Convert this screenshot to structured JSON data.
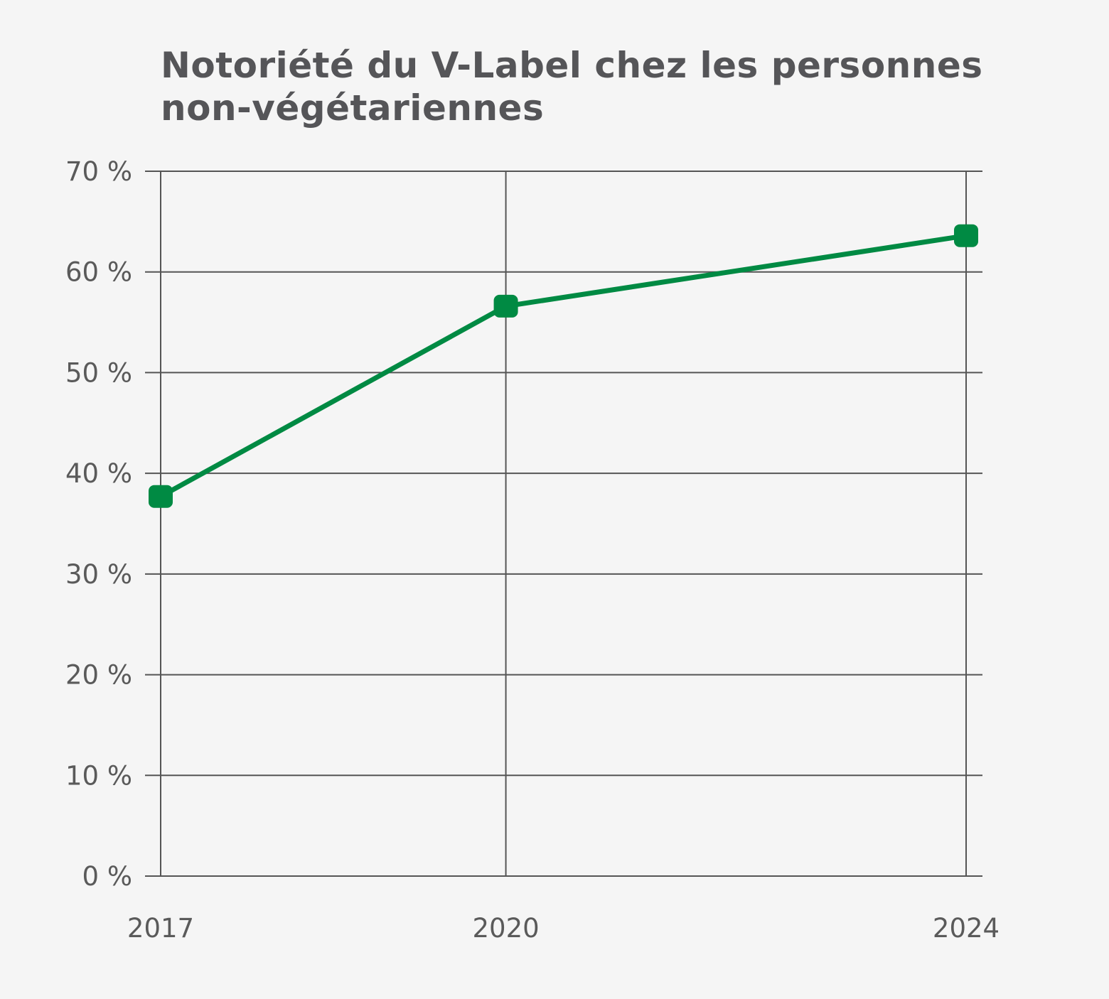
{
  "chart_data": {
    "type": "line",
    "title": "Notoriété du V-Label chez les personnes non-végétariennes",
    "xlabel": "",
    "ylabel": "",
    "x": [
      "2017",
      "2020",
      "2024"
    ],
    "series": [
      {
        "values": [
          37.7,
          56.6,
          63.6
        ],
        "color": "#008a43",
        "marker": "rounded-square"
      }
    ],
    "ylim": [
      0,
      70
    ],
    "yticks": [
      0,
      10,
      20,
      30,
      40,
      50,
      60,
      70
    ],
    "ytick_labels": [
      "0 %",
      "10 %",
      "20 %",
      "30 %",
      "40 %",
      "50 %",
      "60 %",
      "70 %"
    ],
    "grid": true,
    "legend": "none",
    "colors": {
      "line": "#008a43",
      "grid": "#555555",
      "text": "#555558",
      "background": "#f5f5f5"
    }
  }
}
